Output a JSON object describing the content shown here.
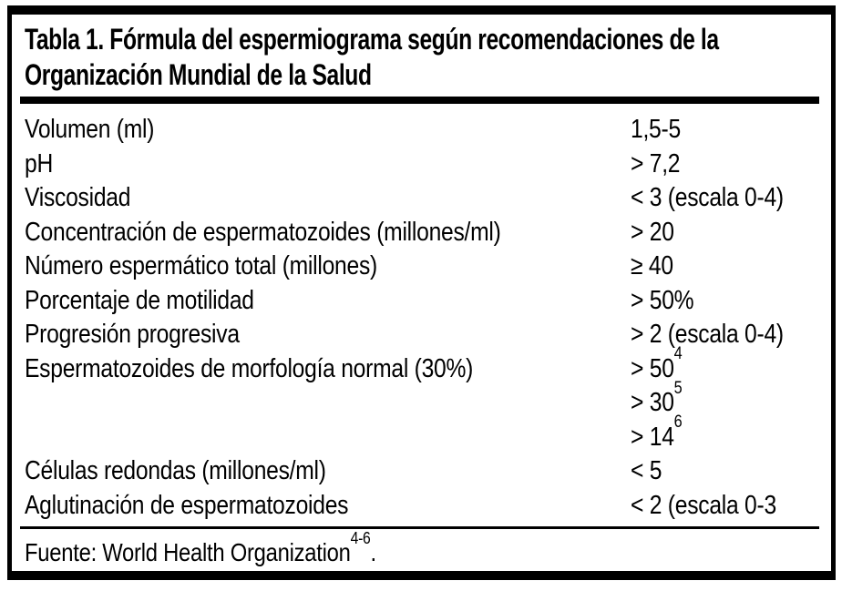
{
  "table": {
    "title_line1": "Tabla 1. Fórmula del espermiograma según recomendaciones de la",
    "title_line2": "Organización Mundial de la Salud",
    "rows": [
      {
        "label": "Volumen (ml)",
        "value": "1,5-5",
        "sup": ""
      },
      {
        "label": "pH",
        "value": "> 7,2",
        "sup": ""
      },
      {
        "label": "Viscosidad",
        "value": "< 3 (escala 0-4)",
        "sup": ""
      },
      {
        "label": "Concentración de espermatozoides (millones/ml)",
        "value": "> 20",
        "sup": ""
      },
      {
        "label": "Número espermático total (millones)",
        "value": "≥ 40",
        "sup": ""
      },
      {
        "label": "Porcentaje de motilidad",
        "value": "> 50%",
        "sup": ""
      },
      {
        "label": "Progresión progresiva",
        "value": "> 2 (escala 0-4)",
        "sup": ""
      },
      {
        "label": "Espermatozoides de morfología normal (30%)",
        "value": "> 50",
        "sup": "4"
      },
      {
        "label": "",
        "value": "> 30",
        "sup": "5"
      },
      {
        "label": "",
        "value": "> 14",
        "sup": "6"
      },
      {
        "label": "Células redondas (millones/ml)",
        "value": "< 5",
        "sup": ""
      },
      {
        "label": "Aglutinación de espermatozoides",
        "value": "< 2 (escala 0-3",
        "sup": ""
      }
    ],
    "footer": {
      "text": "Fuente: World Health Organization",
      "sup": "4-6",
      "after": "."
    },
    "colors": {
      "text": "#000000",
      "background": "#ffffff",
      "rule": "#000000"
    }
  }
}
